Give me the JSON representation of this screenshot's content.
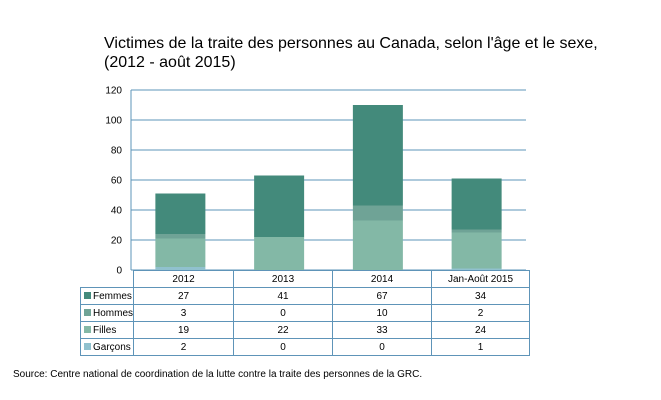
{
  "chart_data": {
    "type": "bar",
    "stacked": true,
    "title": "Victimes de la traite des personnes au Canada, selon l'âge et le sexe, (2012 - août 2015)",
    "xlabel": "",
    "ylabel": "",
    "ylim": [
      0,
      120
    ],
    "yticks": [
      "0",
      "20",
      "40",
      "60",
      "80",
      "100",
      "120"
    ],
    "grid": true,
    "legend": "data-table",
    "categories": [
      "2012",
      "2013",
      "2014",
      "Jan-Août 2015"
    ],
    "series": [
      {
        "name": "Femmes",
        "values": [
          27,
          41,
          67,
          34
        ],
        "color": "#438a7b"
      },
      {
        "name": "Hommes",
        "values": [
          3,
          0,
          10,
          2
        ],
        "color": "#6fa396"
      },
      {
        "name": "Filles",
        "values": [
          19,
          22,
          33,
          24
        ],
        "color": "#83b8a6"
      },
      {
        "name": "Garçons",
        "values": [
          2,
          0,
          0,
          1
        ],
        "color": "#90c1ce"
      }
    ]
  },
  "source": "Source: Centre national de coordination de la lutte contre la traite des personnes de la GRC."
}
